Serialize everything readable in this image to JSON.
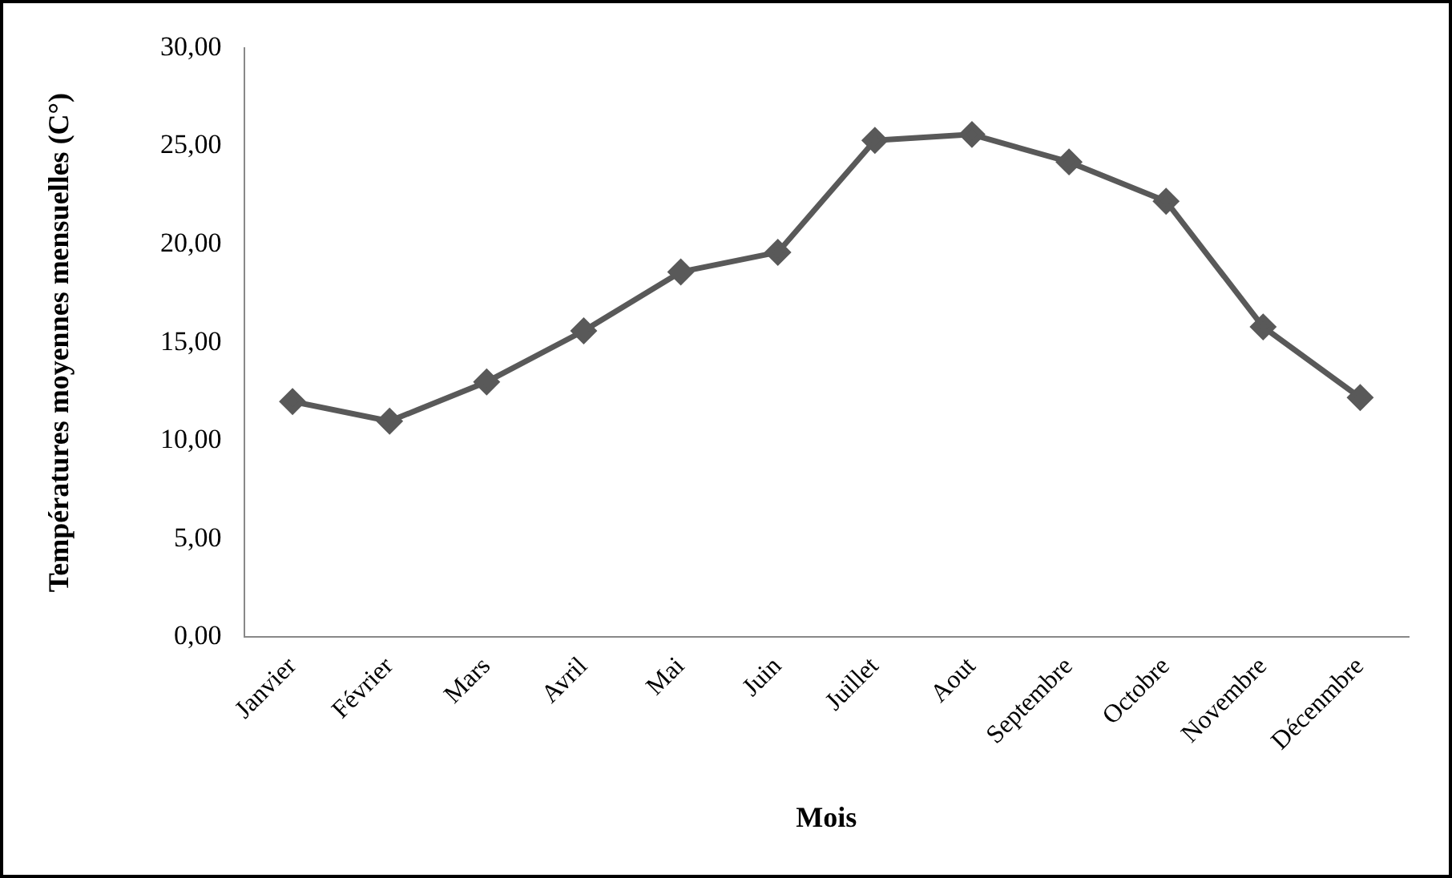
{
  "chart_data": {
    "type": "line",
    "xlabel": "Mois",
    "ylabel": "Températures moyennes mensuelles (C°)",
    "categories": [
      "Janvier",
      "Février",
      "Mars",
      "Avril",
      "Mai",
      "Juin",
      "Juillet",
      "Aout",
      "Septembre",
      "Octobre",
      "Novembre",
      "Décenmbre"
    ],
    "series": [
      {
        "color": "#595959",
        "values": [
          12.0,
          11.0,
          13.0,
          15.6,
          18.6,
          19.6,
          25.3,
          25.6,
          24.2,
          22.2,
          15.8,
          12.2
        ]
      }
    ],
    "ylim": [
      0,
      30
    ],
    "yticks": [
      {
        "value": 0,
        "label": "0,00"
      },
      {
        "value": 5,
        "label": "5,00"
      },
      {
        "value": 10,
        "label": "10,00"
      },
      {
        "value": 15,
        "label": "15,00"
      },
      {
        "value": 20,
        "label": "20,00"
      },
      {
        "value": 25,
        "label": "25,00"
      },
      {
        "value": 30,
        "label": "30,00"
      }
    ],
    "grid": false,
    "legend": false,
    "marker": "diamond",
    "line_style": "solid"
  }
}
